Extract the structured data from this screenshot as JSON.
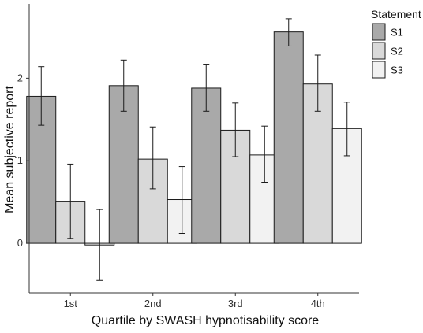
{
  "chart_data": {
    "type": "bar",
    "xlabel": "Quartile by SWASH hypnotisability score",
    "ylabel": "Mean subjective report",
    "categories": [
      "1st",
      "2nd",
      "3rd",
      "4th"
    ],
    "ylim": [
      -0.6,
      2.9
    ],
    "yticks": [
      0,
      1,
      2
    ],
    "grid": false,
    "legend": {
      "title": "Statement",
      "position": "top-right"
    },
    "series": [
      {
        "name": "S1",
        "color": "#a9a9a9",
        "values": [
          1.78,
          1.91,
          1.88,
          2.56
        ],
        "error_low": [
          1.43,
          1.6,
          1.6,
          2.39
        ],
        "error_high": [
          2.14,
          2.22,
          2.17,
          2.72
        ]
      },
      {
        "name": "S2",
        "color": "#d9d9d9",
        "values": [
          0.51,
          1.02,
          1.37,
          1.93
        ],
        "error_low": [
          0.06,
          0.66,
          1.05,
          1.6
        ],
        "error_high": [
          0.96,
          1.41,
          1.7,
          2.28
        ]
      },
      {
        "name": "S3",
        "color": "#f2f2f2",
        "values": [
          -0.02,
          0.53,
          1.07,
          1.39
        ],
        "error_low": [
          -0.45,
          0.12,
          0.74,
          1.06
        ],
        "error_high": [
          0.41,
          0.93,
          1.42,
          1.71
        ]
      }
    ]
  }
}
